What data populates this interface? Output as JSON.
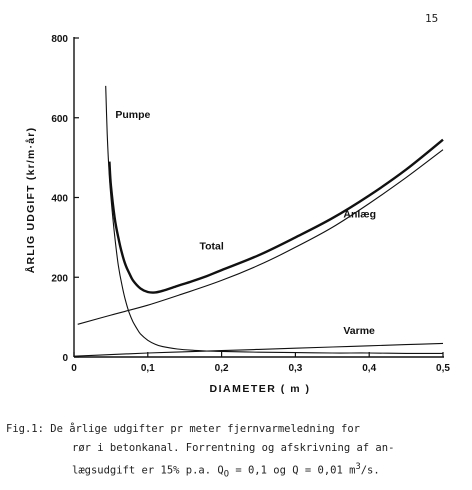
{
  "page_number": "15",
  "chart_data": {
    "type": "line",
    "xlabel": "DIAMETER  ( m )",
    "ylabel": "ÅRLIG UDGIFT  (kr/m·år)",
    "xlim": [
      0,
      0.5
    ],
    "ylim": [
      0,
      800
    ],
    "x_ticks": [
      0,
      0.1,
      0.2,
      0.3,
      0.4,
      0.5
    ],
    "x_tick_labels": [
      "0",
      "0,1",
      "0,2",
      "0,3",
      "0,4",
      "0,5"
    ],
    "y_ticks": [
      0,
      200,
      400,
      600,
      800
    ],
    "y_tick_labels": [
      "0",
      "200",
      "400",
      "600",
      "800"
    ],
    "grid": false,
    "series": [
      {
        "name": "Pumpe",
        "style": "thin",
        "points": [
          [
            0.043,
            680
          ],
          [
            0.045,
            560
          ],
          [
            0.048,
            450
          ],
          [
            0.052,
            360
          ],
          [
            0.056,
            290
          ],
          [
            0.06,
            230
          ],
          [
            0.065,
            180
          ],
          [
            0.07,
            140
          ],
          [
            0.075,
            110
          ],
          [
            0.08,
            88
          ],
          [
            0.085,
            72
          ],
          [
            0.09,
            58
          ],
          [
            0.1,
            42
          ],
          [
            0.11,
            32
          ],
          [
            0.12,
            26
          ],
          [
            0.14,
            20
          ],
          [
            0.16,
            17
          ],
          [
            0.18,
            15
          ],
          [
            0.2,
            14
          ],
          [
            0.25,
            12
          ],
          [
            0.3,
            11
          ],
          [
            0.35,
            10
          ],
          [
            0.4,
            10
          ],
          [
            0.45,
            9
          ],
          [
            0.5,
            9
          ]
        ]
      },
      {
        "name": "Anlæg",
        "style": "thin",
        "points": [
          [
            0.005,
            82
          ],
          [
            0.05,
            105
          ],
          [
            0.1,
            130
          ],
          [
            0.15,
            160
          ],
          [
            0.2,
            192
          ],
          [
            0.25,
            230
          ],
          [
            0.3,
            275
          ],
          [
            0.35,
            325
          ],
          [
            0.4,
            385
          ],
          [
            0.45,
            450
          ],
          [
            0.5,
            520
          ]
        ]
      },
      {
        "name": "Total",
        "style": "thick",
        "points": [
          [
            0.048,
            490
          ],
          [
            0.05,
            430
          ],
          [
            0.055,
            350
          ],
          [
            0.06,
            300
          ],
          [
            0.065,
            260
          ],
          [
            0.07,
            230
          ],
          [
            0.075,
            210
          ],
          [
            0.08,
            192
          ],
          [
            0.09,
            172
          ],
          [
            0.1,
            163
          ],
          [
            0.11,
            162
          ],
          [
            0.12,
            166
          ],
          [
            0.14,
            178
          ],
          [
            0.16,
            190
          ],
          [
            0.18,
            203
          ],
          [
            0.2,
            218
          ],
          [
            0.25,
            255
          ],
          [
            0.3,
            300
          ],
          [
            0.35,
            348
          ],
          [
            0.4,
            405
          ],
          [
            0.45,
            470
          ],
          [
            0.5,
            545
          ]
        ]
      },
      {
        "name": "Varme",
        "style": "thin",
        "points": [
          [
            0.0,
            2
          ],
          [
            0.05,
            6
          ],
          [
            0.1,
            10
          ],
          [
            0.15,
            13
          ],
          [
            0.2,
            16
          ],
          [
            0.25,
            19
          ],
          [
            0.3,
            22
          ],
          [
            0.35,
            25
          ],
          [
            0.4,
            28
          ],
          [
            0.45,
            31
          ],
          [
            0.5,
            34
          ]
        ]
      }
    ],
    "annotations": [
      {
        "text": "Pumpe",
        "x": 0.056,
        "y": 600
      },
      {
        "text": "Total",
        "x": 0.17,
        "y": 270
      },
      {
        "text": "Anlæg",
        "x": 0.365,
        "y": 350
      },
      {
        "text": "Varme",
        "x": 0.365,
        "y": 58
      }
    ]
  },
  "caption": {
    "line1": "Fig.1: De årlige udgifter pr meter fjernvarmeledning for",
    "line2": "rør i betonkanal. Forrentning og afskrivning af an-",
    "line3_prefix": "lægsudgift er 15% p.a.  Q",
    "line3_sub": "O",
    "line3_mid": " = 0,1 og Q = 0,01 m",
    "line3_sup": "3",
    "line3_suffix": "/s."
  }
}
